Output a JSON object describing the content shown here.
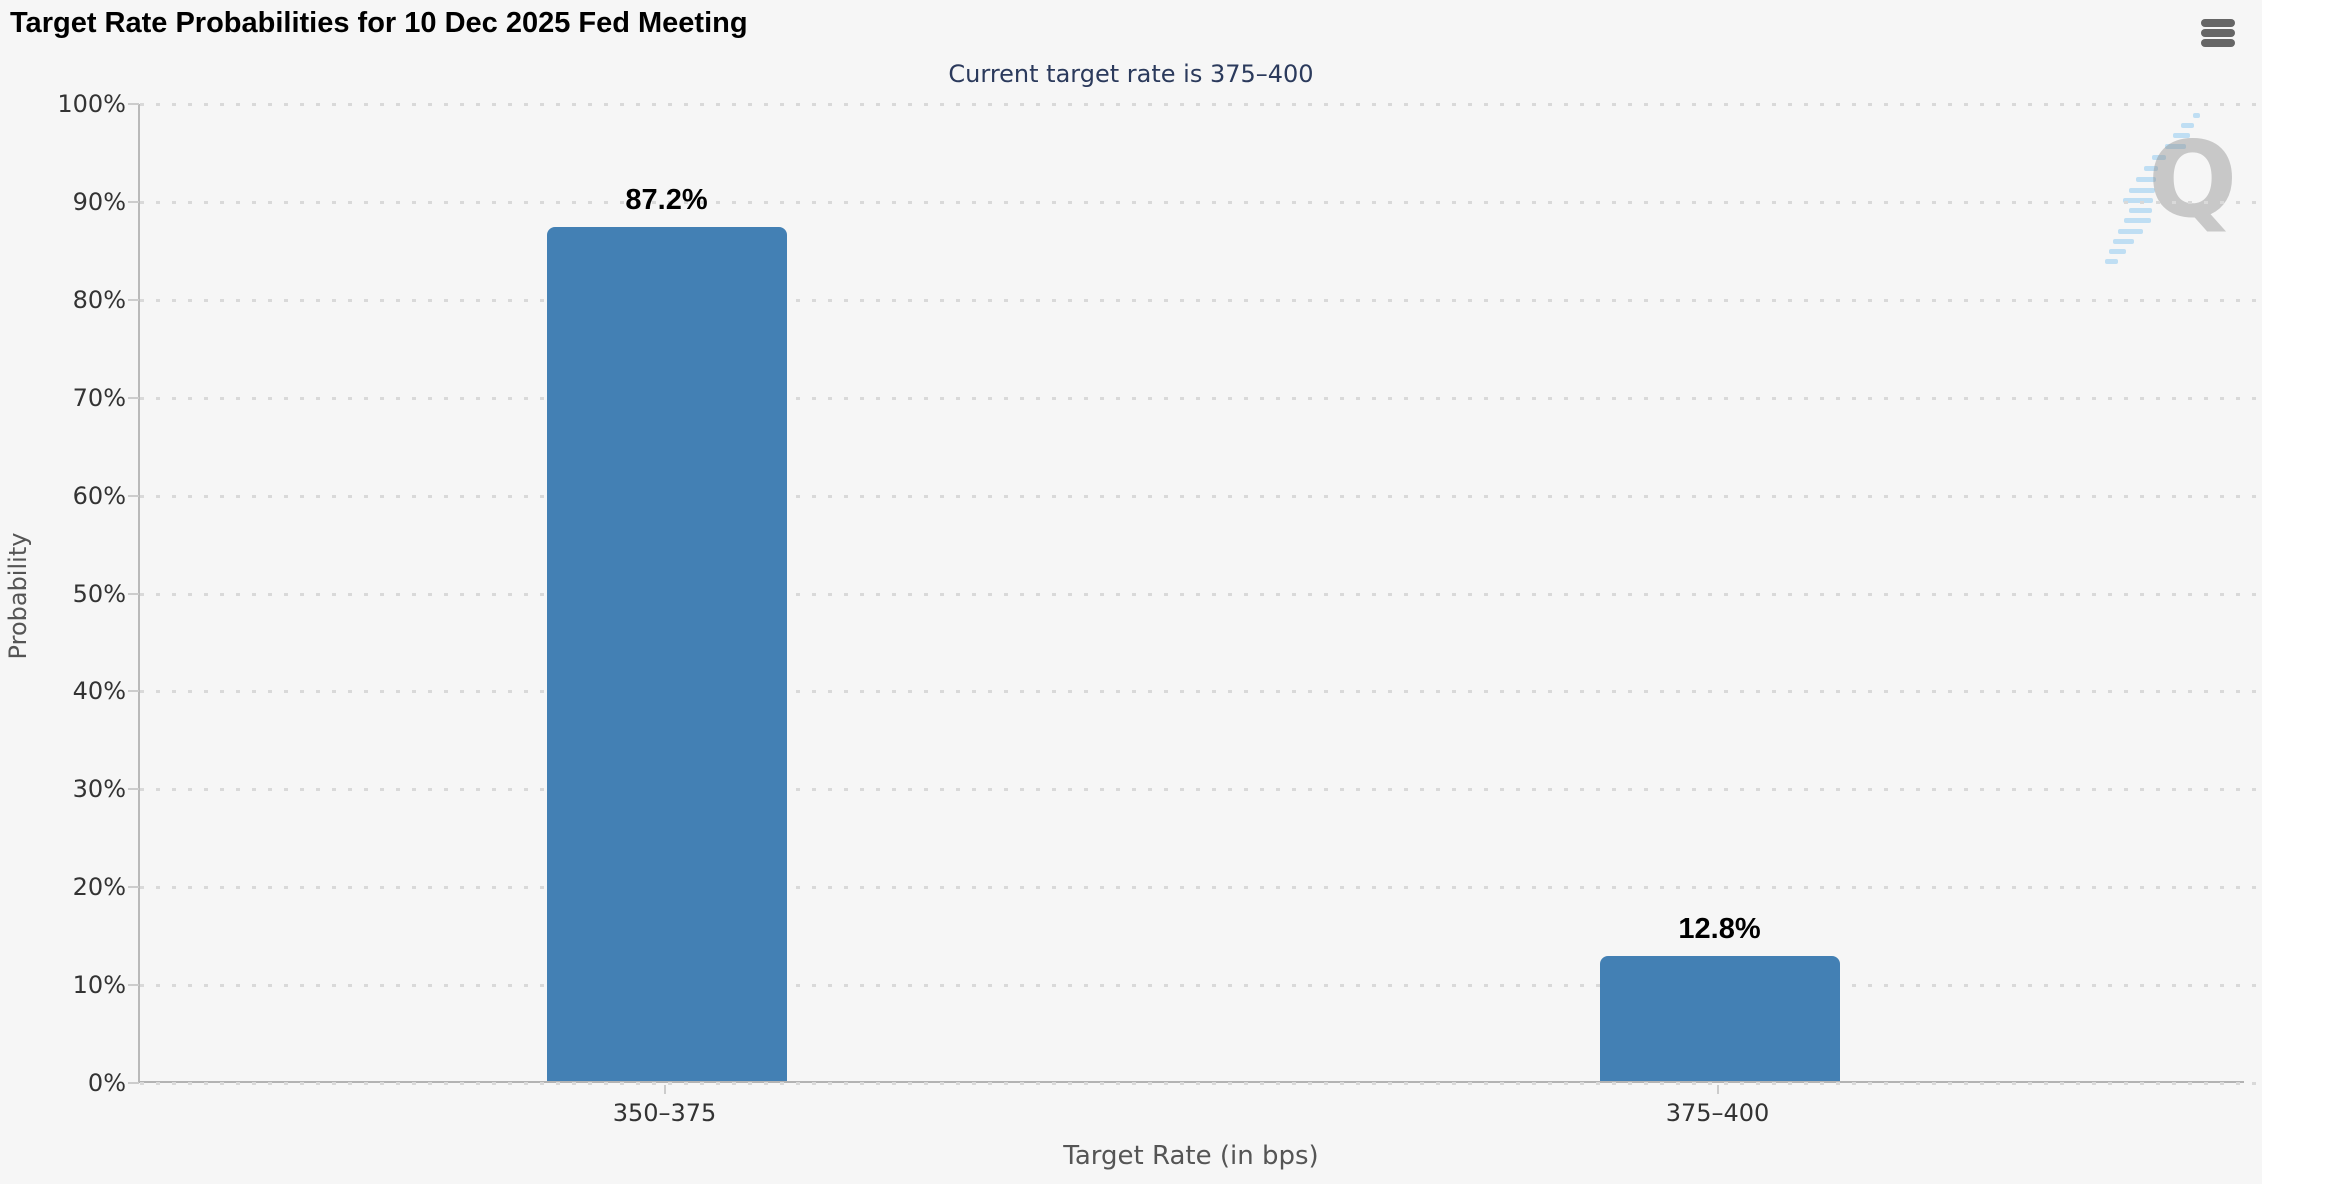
{
  "header": {
    "title": "Target Rate Probabilities for 10 Dec 2025 Fed Meeting",
    "icons": {
      "menu": "hamburger-menu-icon"
    }
  },
  "subtitle": "Current target rate is 375–400",
  "watermark": {
    "letter": "Q"
  },
  "colors": {
    "background": "#f6f6f6",
    "bar": "#4380b4",
    "subtitle_text": "#2b3a5c",
    "axis_label_text": "#333333",
    "axis_title_text": "#555555",
    "grid_dot": "#d9d9d9",
    "axis_line": "#b3b3b3",
    "menu_icon": "#666666",
    "watermark_gray": "#919191",
    "watermark_blue": "#b5d9f2"
  },
  "chart_data": {
    "type": "bar",
    "title": "Target Rate Probabilities for 10 Dec 2025 Fed Meeting",
    "subtitle": "Current target rate is 375–400",
    "categories": [
      "350–375",
      "375–400"
    ],
    "values": [
      87.2,
      12.8
    ],
    "value_labels": [
      "87.2%",
      "12.8%"
    ],
    "xlabel": "Target Rate (in bps)",
    "ylabel": "Probability",
    "ylim": [
      0,
      100
    ],
    "ytick_step": 10,
    "ytick_labels": [
      "0%",
      "10%",
      "20%",
      "30%",
      "40%",
      "50%",
      "60%",
      "70%",
      "80%",
      "90%",
      "100%"
    ],
    "grid": "dotted-horizontal",
    "legend": "none"
  }
}
